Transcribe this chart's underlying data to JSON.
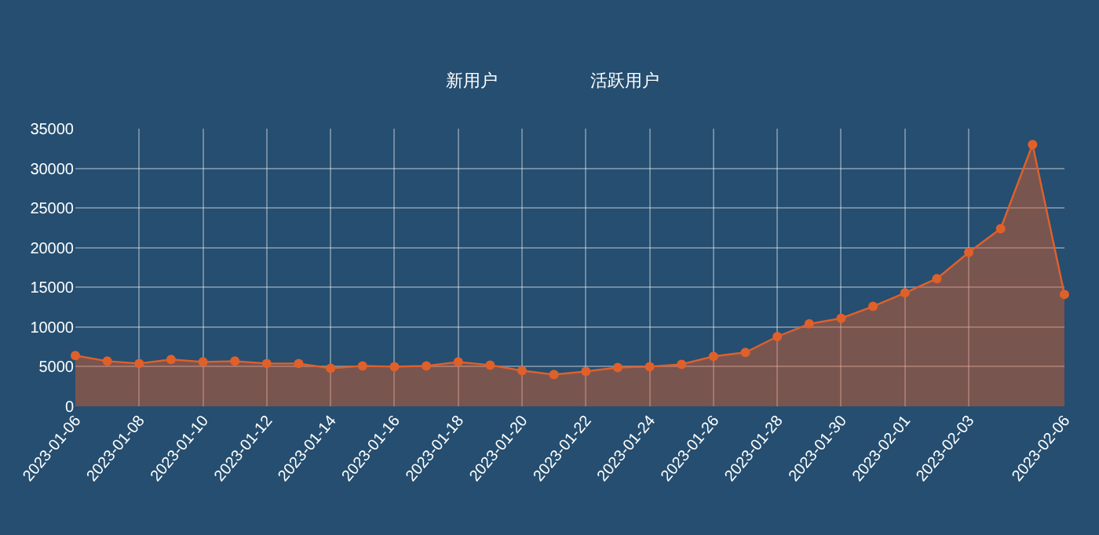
{
  "chart_data": {
    "type": "area",
    "annotations": [
      "新用户",
      "活跃用户"
    ],
    "categories": [
      "2023-01-06",
      null,
      "2023-01-08",
      null,
      "2023-01-10",
      null,
      "2023-01-12",
      null,
      "2023-01-14",
      null,
      "2023-01-16",
      null,
      "2023-01-18",
      null,
      "2023-01-20",
      null,
      "2023-01-22",
      null,
      "2023-01-24",
      null,
      "2023-01-26",
      null,
      "2023-01-28",
      null,
      "2023-01-30",
      null,
      "2023-02-01",
      null,
      "2023-02-03",
      null,
      null,
      "2023-02-06"
    ],
    "series": [
      {
        "color": "#e0602a",
        "values": [
          6400,
          5700,
          5400,
          5900,
          5600,
          5700,
          5400,
          5400,
          4800,
          5100,
          5000,
          5100,
          5600,
          5200,
          4500,
          4000,
          4400,
          4900,
          5000,
          5300,
          6300,
          6800,
          8800,
          10400,
          11100,
          12600,
          14300,
          16100,
          19400,
          22400,
          33000,
          14100
        ]
      }
    ],
    "ylim": [
      0,
      35000
    ],
    "yticks": [
      0,
      5000,
      10000,
      15000,
      20000,
      25000,
      30000,
      35000
    ],
    "grid": true,
    "marker": "circle",
    "line_style": "solid"
  }
}
